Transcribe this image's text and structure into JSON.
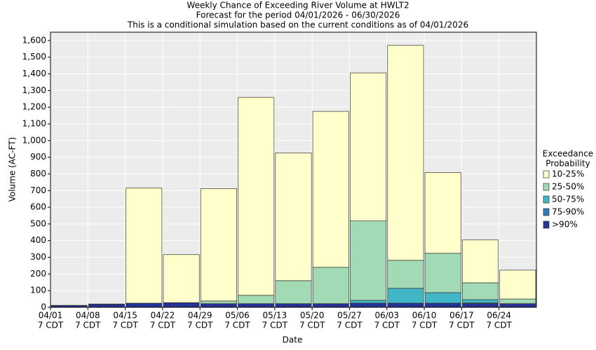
{
  "chart_data": {
    "type": "stacked_bar",
    "title": "Weekly Chance of Exceeding River Volume at HWLT2",
    "subtitle": "Forecast for the period 04/01/2026 - 06/30/2026",
    "note": "This is a conditional simulation based on the current conditions as of 04/01/2026",
    "xlabel": "Date",
    "ylabel": "Volume (AC-FT)",
    "categories": [
      "04/01",
      "04/08",
      "04/15",
      "04/22",
      "04/29",
      "05/06",
      "05/13",
      "05/20",
      "05/27",
      "06/03",
      "06/10",
      "06/17",
      "06/24"
    ],
    "category_times": [
      "7 CDT",
      "7 CDT",
      "7 CDT",
      "7 CDT",
      "7 CDT",
      "7 CDT",
      "7 CDT",
      "7 CDT",
      "7 CDT",
      "7 CDT",
      "7 CDT",
      "7 CDT",
      "7 CDT"
    ],
    "legend_title": [
      "Exceedance",
      "Probability"
    ],
    "series": [
      {
        "name": ">90%",
        "color": "#253494",
        "values": [
          10,
          18,
          25,
          28,
          22,
          22,
          22,
          22,
          25,
          25,
          25,
          22,
          22
        ]
      },
      {
        "name": "75-90%",
        "color": "#2c7fb8",
        "values": [
          0,
          0,
          0,
          0,
          0,
          0,
          0,
          0,
          0,
          0,
          0,
          4,
          0
        ]
      },
      {
        "name": "50-75%",
        "color": "#41b6c4",
        "values": [
          0,
          0,
          0,
          0,
          0,
          0,
          0,
          0,
          17,
          89,
          63,
          20,
          0
        ]
      },
      {
        "name": "25-50%",
        "color": "#a1dab4",
        "values": [
          0,
          0,
          0,
          0,
          16,
          50,
          138,
          218,
          476,
          168,
          236,
          101,
          28
        ]
      },
      {
        "name": "10-25%",
        "color": "#ffffcc",
        "values": [
          2,
          2,
          690,
          288,
          674,
          1187,
          766,
          935,
          888,
          1289,
          484,
          257,
          173
        ]
      }
    ],
    "ylim": [
      0,
      1650
    ],
    "yticks": [
      0,
      100,
      200,
      300,
      400,
      500,
      600,
      700,
      800,
      900,
      {
        "value": 1000,
        "label": "1,000"
      },
      {
        "value": 1100,
        "label": "1,100"
      },
      {
        "value": 1200,
        "label": "1,200"
      },
      {
        "value": 1300,
        "label": "1,300"
      },
      {
        "value": 1400,
        "label": "1,400"
      },
      {
        "value": 1500,
        "label": "1,500"
      },
      {
        "value": 1600,
        "label": "1,600"
      }
    ],
    "grid": true
  }
}
